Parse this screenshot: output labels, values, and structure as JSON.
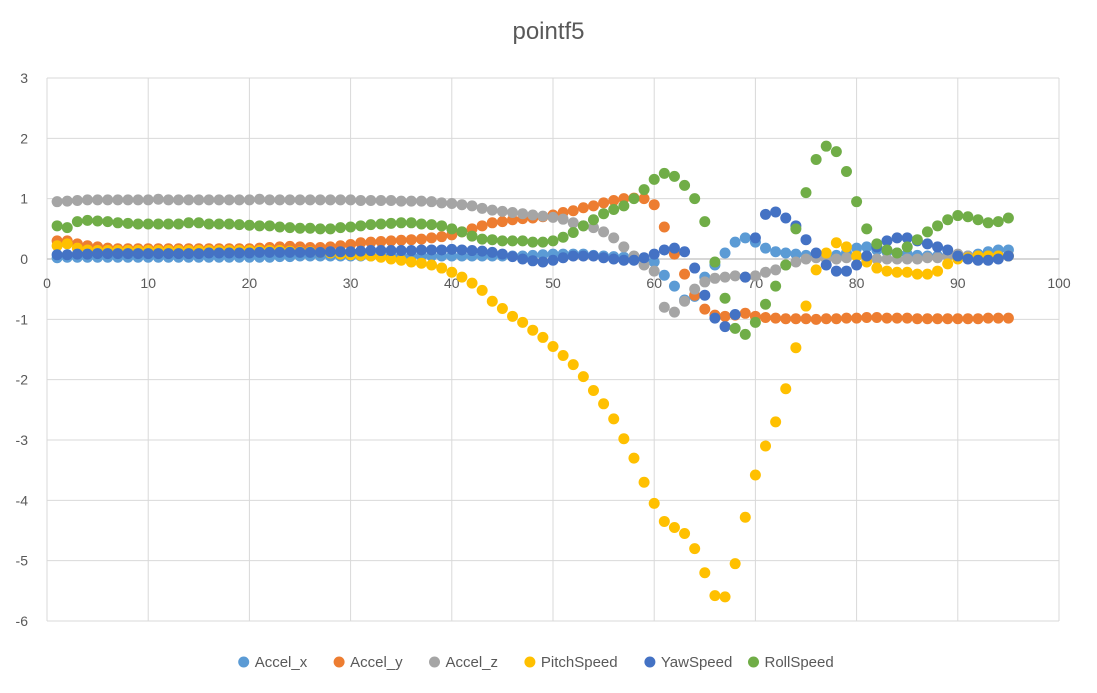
{
  "chart_data": {
    "type": "scatter",
    "title": "pointf5",
    "xlabel": "",
    "ylabel": "",
    "xlim": [
      0,
      100
    ],
    "ylim": [
      -6,
      3
    ],
    "xticks": [
      0,
      10,
      20,
      30,
      40,
      50,
      60,
      70,
      80,
      90,
      100
    ],
    "yticks": [
      3,
      2,
      1,
      0,
      -1,
      -2,
      -3,
      -4,
      -5,
      -6
    ],
    "grid": true,
    "legend_position": "bottom",
    "series": [
      {
        "name": "Accel_x",
        "color": "#5B9BD5",
        "x": [
          1,
          2,
          3,
          4,
          5,
          6,
          7,
          8,
          9,
          10,
          11,
          12,
          13,
          14,
          15,
          16,
          17,
          18,
          19,
          20,
          21,
          22,
          23,
          24,
          25,
          26,
          27,
          28,
          29,
          30,
          31,
          32,
          33,
          34,
          35,
          36,
          37,
          38,
          39,
          40,
          41,
          42,
          43,
          44,
          45,
          46,
          47,
          48,
          49,
          50,
          51,
          52,
          53,
          54,
          55,
          56,
          57,
          58,
          59,
          60,
          61,
          62,
          63,
          64,
          65,
          66,
          67,
          68,
          69,
          70,
          71,
          72,
          73,
          74,
          75,
          76,
          77,
          78,
          79,
          80,
          81,
          82,
          83,
          84,
          85,
          86,
          87,
          88,
          89,
          90,
          91,
          92,
          93,
          94,
          95
        ],
        "y": [
          0.02,
          0.03,
          0.03,
          0.03,
          0.03,
          0.03,
          0.03,
          0.03,
          0.03,
          0.03,
          0.03,
          0.03,
          0.03,
          0.03,
          0.03,
          0.03,
          0.03,
          0.03,
          0.03,
          0.03,
          0.03,
          0.03,
          0.04,
          0.04,
          0.05,
          0.05,
          0.05,
          0.05,
          0.05,
          0.05,
          0.05,
          0.05,
          0.05,
          0.05,
          0.05,
          0.05,
          0.05,
          0.05,
          0.05,
          0.05,
          0.05,
          0.05,
          0.05,
          0.05,
          0.05,
          0.05,
          0.05,
          0.06,
          0.07,
          0.08,
          0.08,
          0.08,
          0.08,
          0.06,
          0.05,
          0.04,
          0.03,
          0.02,
          0.0,
          -0.05,
          -0.27,
          -0.45,
          -0.68,
          -0.62,
          -0.3,
          -0.1,
          0.1,
          0.28,
          0.35,
          0.28,
          0.18,
          0.12,
          0.1,
          0.08,
          0.06,
          0.04,
          0.04,
          0.06,
          0.1,
          0.18,
          0.2,
          0.15,
          0.12,
          0.1,
          0.08,
          0.06,
          0.05,
          0.05,
          0.05,
          0.05,
          0.05,
          0.08,
          0.12,
          0.15,
          0.15
        ]
      },
      {
        "name": "Accel_y",
        "color": "#ED7D31",
        "x": [
          1,
          2,
          3,
          4,
          5,
          6,
          7,
          8,
          9,
          10,
          11,
          12,
          13,
          14,
          15,
          16,
          17,
          18,
          19,
          20,
          21,
          22,
          23,
          24,
          25,
          26,
          27,
          28,
          29,
          30,
          31,
          32,
          33,
          34,
          35,
          36,
          37,
          38,
          39,
          40,
          41,
          42,
          43,
          44,
          45,
          46,
          47,
          48,
          49,
          50,
          51,
          52,
          53,
          54,
          55,
          56,
          57,
          58,
          59,
          60,
          61,
          62,
          63,
          64,
          65,
          66,
          67,
          68,
          69,
          70,
          71,
          72,
          73,
          74,
          75,
          76,
          77,
          78,
          79,
          80,
          81,
          82,
          83,
          84,
          85,
          86,
          87,
          88,
          89,
          90,
          91,
          92,
          93,
          94,
          95
        ],
        "y": [
          0.3,
          0.3,
          0.25,
          0.22,
          0.2,
          0.18,
          0.17,
          0.17,
          0.17,
          0.17,
          0.17,
          0.17,
          0.17,
          0.17,
          0.17,
          0.17,
          0.17,
          0.17,
          0.17,
          0.17,
          0.18,
          0.19,
          0.2,
          0.21,
          0.2,
          0.19,
          0.19,
          0.2,
          0.22,
          0.24,
          0.27,
          0.28,
          0.29,
          0.3,
          0.31,
          0.32,
          0.33,
          0.35,
          0.37,
          0.4,
          0.45,
          0.5,
          0.55,
          0.6,
          0.62,
          0.65,
          0.67,
          0.68,
          0.7,
          0.73,
          0.77,
          0.8,
          0.85,
          0.88,
          0.93,
          0.97,
          1.0,
          1.01,
          1.0,
          0.9,
          0.53,
          0.08,
          -0.25,
          -0.6,
          -0.83,
          -0.93,
          -0.95,
          -0.93,
          -0.9,
          -0.95,
          -0.97,
          -0.98,
          -0.99,
          -0.99,
          -0.99,
          -1.0,
          -0.99,
          -0.99,
          -0.98,
          -0.98,
          -0.97,
          -0.97,
          -0.98,
          -0.98,
          -0.98,
          -0.99,
          -0.99,
          -0.99,
          -0.99,
          -0.99,
          -0.99,
          -0.99,
          -0.98,
          -0.98,
          -0.98
        ]
      },
      {
        "name": "Accel_z",
        "color": "#A5A5A5",
        "x": [
          1,
          2,
          3,
          4,
          5,
          6,
          7,
          8,
          9,
          10,
          11,
          12,
          13,
          14,
          15,
          16,
          17,
          18,
          19,
          20,
          21,
          22,
          23,
          24,
          25,
          26,
          27,
          28,
          29,
          30,
          31,
          32,
          33,
          34,
          35,
          36,
          37,
          38,
          39,
          40,
          41,
          42,
          43,
          44,
          45,
          46,
          47,
          48,
          49,
          50,
          51,
          52,
          53,
          54,
          55,
          56,
          57,
          58,
          59,
          60,
          61,
          62,
          63,
          64,
          65,
          66,
          67,
          68,
          69,
          70,
          71,
          72,
          73,
          74,
          75,
          76,
          77,
          78,
          79,
          80,
          81,
          82,
          83,
          84,
          85,
          86,
          87,
          88,
          89,
          90,
          91,
          92,
          93,
          94,
          95
        ],
        "y": [
          0.95,
          0.96,
          0.97,
          0.98,
          0.98,
          0.98,
          0.98,
          0.98,
          0.98,
          0.98,
          0.99,
          0.98,
          0.98,
          0.98,
          0.98,
          0.98,
          0.98,
          0.98,
          0.98,
          0.98,
          0.99,
          0.98,
          0.98,
          0.98,
          0.98,
          0.98,
          0.98,
          0.98,
          0.98,
          0.98,
          0.97,
          0.97,
          0.97,
          0.97,
          0.96,
          0.96,
          0.96,
          0.95,
          0.93,
          0.92,
          0.9,
          0.88,
          0.84,
          0.81,
          0.79,
          0.77,
          0.75,
          0.73,
          0.71,
          0.69,
          0.66,
          0.6,
          0.55,
          0.52,
          0.45,
          0.35,
          0.2,
          0.05,
          -0.1,
          -0.2,
          -0.8,
          -0.88,
          -0.7,
          -0.5,
          -0.38,
          -0.32,
          -0.3,
          -0.28,
          -0.3,
          -0.28,
          -0.22,
          -0.18,
          -0.1,
          -0.05,
          0.0,
          0.02,
          0.0,
          0.0,
          0.02,
          0.05,
          0.02,
          0.0,
          0.0,
          0.0,
          0.0,
          0.0,
          0.02,
          0.02,
          0.05,
          0.08,
          0.05,
          0.05,
          0.05,
          0.05,
          0.05
        ]
      },
      {
        "name": "PitchSpeed",
        "color": "#FFC000",
        "x": [
          1,
          2,
          3,
          4,
          5,
          6,
          7,
          8,
          9,
          10,
          11,
          12,
          13,
          14,
          15,
          16,
          17,
          18,
          19,
          20,
          21,
          22,
          23,
          24,
          25,
          26,
          27,
          28,
          29,
          30,
          31,
          32,
          33,
          34,
          35,
          36,
          37,
          38,
          39,
          40,
          41,
          42,
          43,
          44,
          45,
          46,
          47,
          48,
          49,
          50,
          51,
          52,
          53,
          54,
          55,
          56,
          57,
          58,
          59,
          60,
          61,
          62,
          63,
          64,
          65,
          66,
          67,
          68,
          69,
          70,
          71,
          72,
          73,
          74,
          75,
          76,
          77,
          78,
          79,
          80,
          81,
          82,
          83,
          84,
          85,
          86,
          87,
          88,
          89,
          90,
          91,
          92,
          93,
          94,
          95
        ],
        "y": [
          0.22,
          0.25,
          0.18,
          0.15,
          0.14,
          0.14,
          0.14,
          0.14,
          0.14,
          0.14,
          0.14,
          0.14,
          0.14,
          0.14,
          0.14,
          0.14,
          0.14,
          0.14,
          0.14,
          0.14,
          0.14,
          0.14,
          0.14,
          0.13,
          0.12,
          0.12,
          0.11,
          0.1,
          0.08,
          0.07,
          0.06,
          0.05,
          0.03,
          0.0,
          -0.02,
          -0.05,
          -0.07,
          -0.1,
          -0.15,
          -0.22,
          -0.3,
          -0.4,
          -0.52,
          -0.7,
          -0.82,
          -0.95,
          -1.05,
          -1.18,
          -1.3,
          -1.45,
          -1.6,
          -1.75,
          -1.95,
          -2.18,
          -2.4,
          -2.65,
          -2.98,
          -3.3,
          -3.7,
          -4.05,
          -4.35,
          -4.45,
          -4.55,
          -4.8,
          -5.2,
          -5.58,
          -5.6,
          -5.05,
          -4.28,
          -3.58,
          -3.1,
          -2.7,
          -2.15,
          -1.47,
          -0.78,
          -0.18,
          0.1,
          0.27,
          0.2,
          0.05,
          -0.05,
          -0.15,
          -0.2,
          -0.22,
          -0.22,
          -0.25,
          -0.25,
          -0.2,
          -0.08,
          0.0,
          0.02,
          0.05,
          0.05,
          0.05,
          0.05
        ]
      },
      {
        "name": "YawSpeed",
        "color": "#4472C4",
        "x": [
          1,
          2,
          3,
          4,
          5,
          6,
          7,
          8,
          9,
          10,
          11,
          12,
          13,
          14,
          15,
          16,
          17,
          18,
          19,
          20,
          21,
          22,
          23,
          24,
          25,
          26,
          27,
          28,
          29,
          30,
          31,
          32,
          33,
          34,
          35,
          36,
          37,
          38,
          39,
          40,
          41,
          42,
          43,
          44,
          45,
          46,
          47,
          48,
          49,
          50,
          51,
          52,
          53,
          54,
          55,
          56,
          57,
          58,
          59,
          60,
          61,
          62,
          63,
          64,
          65,
          66,
          67,
          68,
          69,
          70,
          71,
          72,
          73,
          74,
          75,
          76,
          77,
          78,
          79,
          80,
          81,
          82,
          83,
          84,
          85,
          86,
          87,
          88,
          89,
          90,
          91,
          92,
          93,
          94,
          95
        ],
        "y": [
          0.07,
          0.07,
          0.08,
          0.08,
          0.09,
          0.09,
          0.09,
          0.09,
          0.09,
          0.09,
          0.09,
          0.09,
          0.09,
          0.09,
          0.09,
          0.1,
          0.1,
          0.1,
          0.1,
          0.1,
          0.11,
          0.11,
          0.11,
          0.11,
          0.11,
          0.11,
          0.11,
          0.12,
          0.12,
          0.12,
          0.13,
          0.14,
          0.14,
          0.14,
          0.14,
          0.14,
          0.15,
          0.15,
          0.15,
          0.16,
          0.15,
          0.14,
          0.13,
          0.11,
          0.08,
          0.04,
          0.0,
          -0.03,
          -0.05,
          -0.02,
          0.02,
          0.05,
          0.05,
          0.05,
          0.02,
          0.0,
          -0.02,
          -0.02,
          0.02,
          0.08,
          0.15,
          0.18,
          0.12,
          -0.15,
          -0.6,
          -0.98,
          -1.12,
          -0.92,
          -0.3,
          0.35,
          0.74,
          0.78,
          0.68,
          0.55,
          0.32,
          0.1,
          -0.1,
          -0.2,
          -0.2,
          -0.1,
          0.05,
          0.2,
          0.3,
          0.35,
          0.35,
          0.3,
          0.25,
          0.2,
          0.15,
          0.05,
          0.0,
          -0.02,
          -0.02,
          0.0,
          0.05
        ]
      },
      {
        "name": "RollSpeed",
        "color": "#70AD47",
        "x": [
          1,
          2,
          3,
          4,
          5,
          6,
          7,
          8,
          9,
          10,
          11,
          12,
          13,
          14,
          15,
          16,
          17,
          18,
          19,
          20,
          21,
          22,
          23,
          24,
          25,
          26,
          27,
          28,
          29,
          30,
          31,
          32,
          33,
          34,
          35,
          36,
          37,
          38,
          39,
          40,
          41,
          42,
          43,
          44,
          45,
          46,
          47,
          48,
          49,
          50,
          51,
          52,
          53,
          54,
          55,
          56,
          57,
          58,
          59,
          60,
          61,
          62,
          63,
          64,
          65,
          66,
          67,
          68,
          69,
          70,
          71,
          72,
          73,
          74,
          75,
          76,
          77,
          78,
          79,
          80,
          81,
          82,
          83,
          84,
          85,
          86,
          87,
          88,
          89,
          90,
          91,
          92,
          93,
          94,
          95
        ],
        "y": [
          0.55,
          0.52,
          0.62,
          0.64,
          0.63,
          0.62,
          0.6,
          0.59,
          0.58,
          0.58,
          0.58,
          0.58,
          0.58,
          0.6,
          0.6,
          0.58,
          0.58,
          0.58,
          0.57,
          0.56,
          0.55,
          0.55,
          0.53,
          0.52,
          0.51,
          0.51,
          0.5,
          0.5,
          0.52,
          0.53,
          0.55,
          0.57,
          0.58,
          0.59,
          0.6,
          0.6,
          0.58,
          0.57,
          0.55,
          0.5,
          0.45,
          0.38,
          0.33,
          0.32,
          0.3,
          0.3,
          0.3,
          0.28,
          0.28,
          0.3,
          0.36,
          0.44,
          0.55,
          0.65,
          0.75,
          0.82,
          0.88,
          1.0,
          1.15,
          1.32,
          1.42,
          1.37,
          1.22,
          1.0,
          0.62,
          -0.05,
          -0.65,
          -1.15,
          -1.25,
          -1.05,
          -0.75,
          -0.45,
          -0.1,
          0.5,
          1.1,
          1.65,
          1.87,
          1.78,
          1.45,
          0.95,
          0.5,
          0.25,
          0.15,
          0.1,
          0.2,
          0.32,
          0.45,
          0.55,
          0.65,
          0.72,
          0.7,
          0.65,
          0.6,
          0.62,
          0.68
        ]
      }
    ]
  }
}
